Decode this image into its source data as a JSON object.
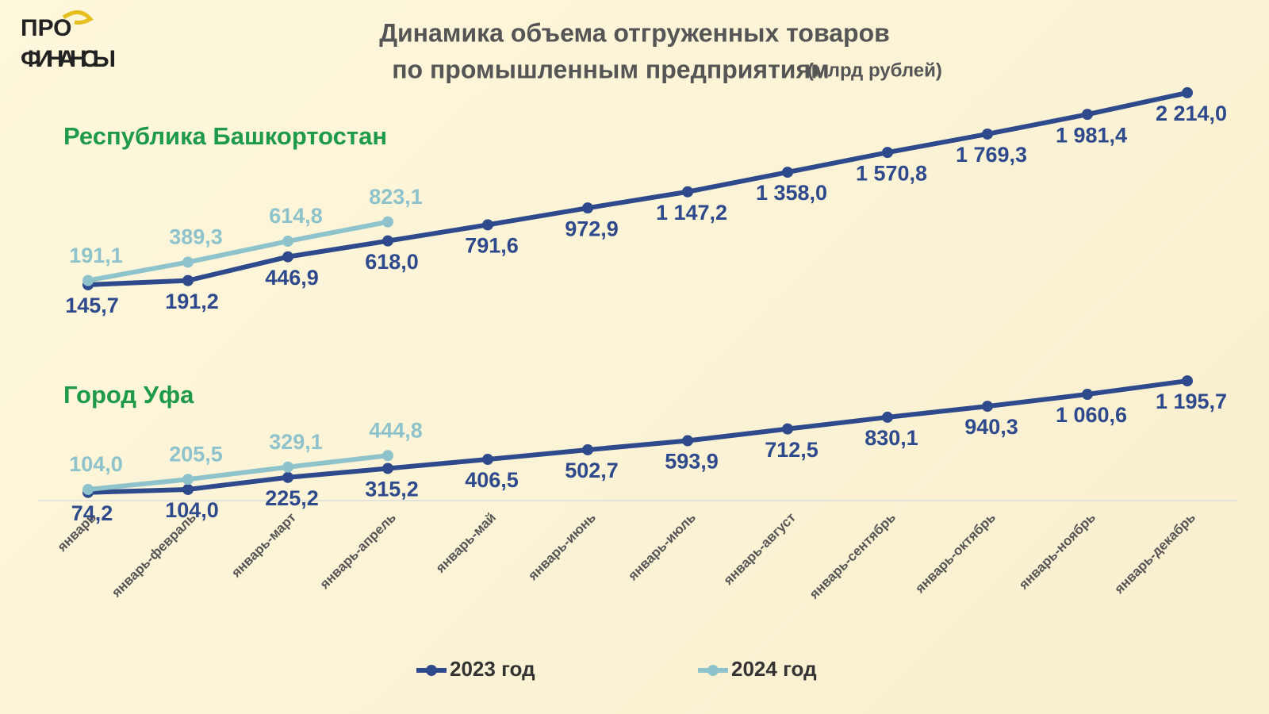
{
  "header": {
    "logo": [
      "ПРО",
      "ФИНАНСЫ"
    ],
    "title": [
      "Динамика объема отгруженных товаров",
      "по промышленным предприятиям"
    ],
    "unit": "(млрд рублей)"
  },
  "chart_data": [
    {
      "type": "line",
      "title": "Республика Башкортостан",
      "ylim": [
        0,
        2350
      ],
      "series": [
        {
          "color": "#2e4a8c",
          "values": [
            145.7,
            191.2,
            446.9,
            618.0,
            791.6,
            972.9,
            1147.2,
            1358.0,
            1570.8,
            1769.3,
            1981.4,
            2214.0
          ],
          "value_labels": [
            "145,7",
            "191,2",
            "446,9",
            "618,0",
            "791,6",
            "972,9",
            "1 147,2",
            "1 358,0",
            "1 570,8",
            "1 769,3",
            "1 981,4",
            "2 214,0"
          ]
        },
        {
          "color": "#8ec3cc",
          "values": [
            191.1,
            389.3,
            614.8,
            823.1,
            null,
            null,
            null,
            null,
            null,
            null,
            null,
            null
          ],
          "value_labels": [
            "191,1",
            "389,3",
            "614,8",
            "823,1",
            null,
            null,
            null,
            null,
            null,
            null,
            null,
            null
          ]
        }
      ]
    },
    {
      "type": "line",
      "title": "Город Уфа",
      "ylim": [
        0,
        1300
      ],
      "categories": [
        "январь",
        "январь-февраль",
        "январь-март",
        "январь-апрель",
        "январь-май",
        "январь-июнь",
        "январь-июль",
        "январь-август",
        "январь-сентябрь",
        "январь-октябрь",
        "январь-ноябрь",
        "январь-декабрь"
      ],
      "series": [
        {
          "name": "2023 год",
          "color": "#2e4a8c",
          "values": [
            74.2,
            104.0,
            225.2,
            315.2,
            406.5,
            502.7,
            593.9,
            712.5,
            830.1,
            940.3,
            1060.6,
            1195.7
          ],
          "value_labels": [
            "74,2",
            "104,0",
            "225,2",
            "315,2",
            "406,5",
            "502,7",
            "593,9",
            "712,5",
            "830,1",
            "940,3",
            "1 060,6",
            "1 195,7"
          ]
        },
        {
          "name": "2024 год",
          "color": "#8ec3cc",
          "values": [
            104.0,
            205.5,
            329.1,
            444.8,
            null,
            null,
            null,
            null,
            null,
            null,
            null,
            null
          ],
          "value_labels": [
            "104,0",
            "205,5",
            "329,1",
            "444,8",
            null,
            null,
            null,
            null,
            null,
            null,
            null,
            null
          ]
        }
      ]
    }
  ]
}
